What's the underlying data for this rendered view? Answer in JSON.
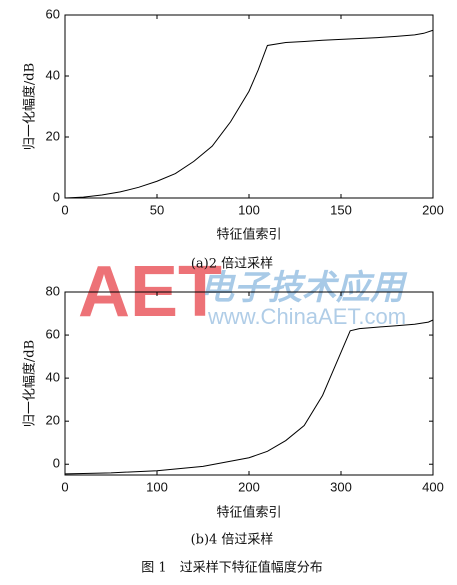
{
  "chart_data": [
    {
      "type": "line",
      "caption": "(a)2 倍过采样",
      "x_label": "特征值索引",
      "y_label": "归一化幅度/dB",
      "color": "#000000",
      "x": [
        0,
        10,
        20,
        30,
        40,
        50,
        60,
        70,
        80,
        90,
        100,
        105,
        110,
        120,
        130,
        140,
        150,
        160,
        170,
        180,
        190,
        195,
        200
      ],
      "values": [
        0,
        0.3,
        1,
        2,
        3.5,
        5.5,
        8,
        12,
        17,
        25,
        35,
        42,
        50,
        51,
        51.3,
        51.7,
        52,
        52.3,
        52.6,
        53,
        53.5,
        54,
        55
      ],
      "xlim": [
        0,
        200
      ],
      "xticks": [
        0,
        50,
        100,
        150,
        200
      ],
      "ylim": [
        0,
        60
      ],
      "yticks": [
        0,
        20,
        40,
        60
      ],
      "grid": false
    },
    {
      "type": "line",
      "caption": "(b)4 倍过采样",
      "x_label": "特征值索引",
      "y_label": "归一化幅度/dB",
      "color": "#000000",
      "x": [
        0,
        20,
        50,
        100,
        150,
        200,
        220,
        240,
        260,
        280,
        300,
        310,
        320,
        340,
        360,
        380,
        395,
        400
      ],
      "values": [
        -4.5,
        -4.3,
        -4,
        -3,
        -1,
        3,
        6,
        11,
        18,
        32,
        52,
        62,
        63,
        63.7,
        64.3,
        65,
        66,
        67
      ],
      "xlim": [
        0,
        400
      ],
      "xticks": [
        0,
        100,
        200,
        300,
        400
      ],
      "ylim": [
        -5,
        80
      ],
      "yticks": [
        0,
        20,
        40,
        60,
        80
      ],
      "grid": false
    }
  ],
  "figure_caption": "图 1　过采样下特征值幅度分布",
  "watermark": {
    "logo": "AET",
    "cn": "电子技术应用",
    "url": "www.ChinaAET.com"
  }
}
